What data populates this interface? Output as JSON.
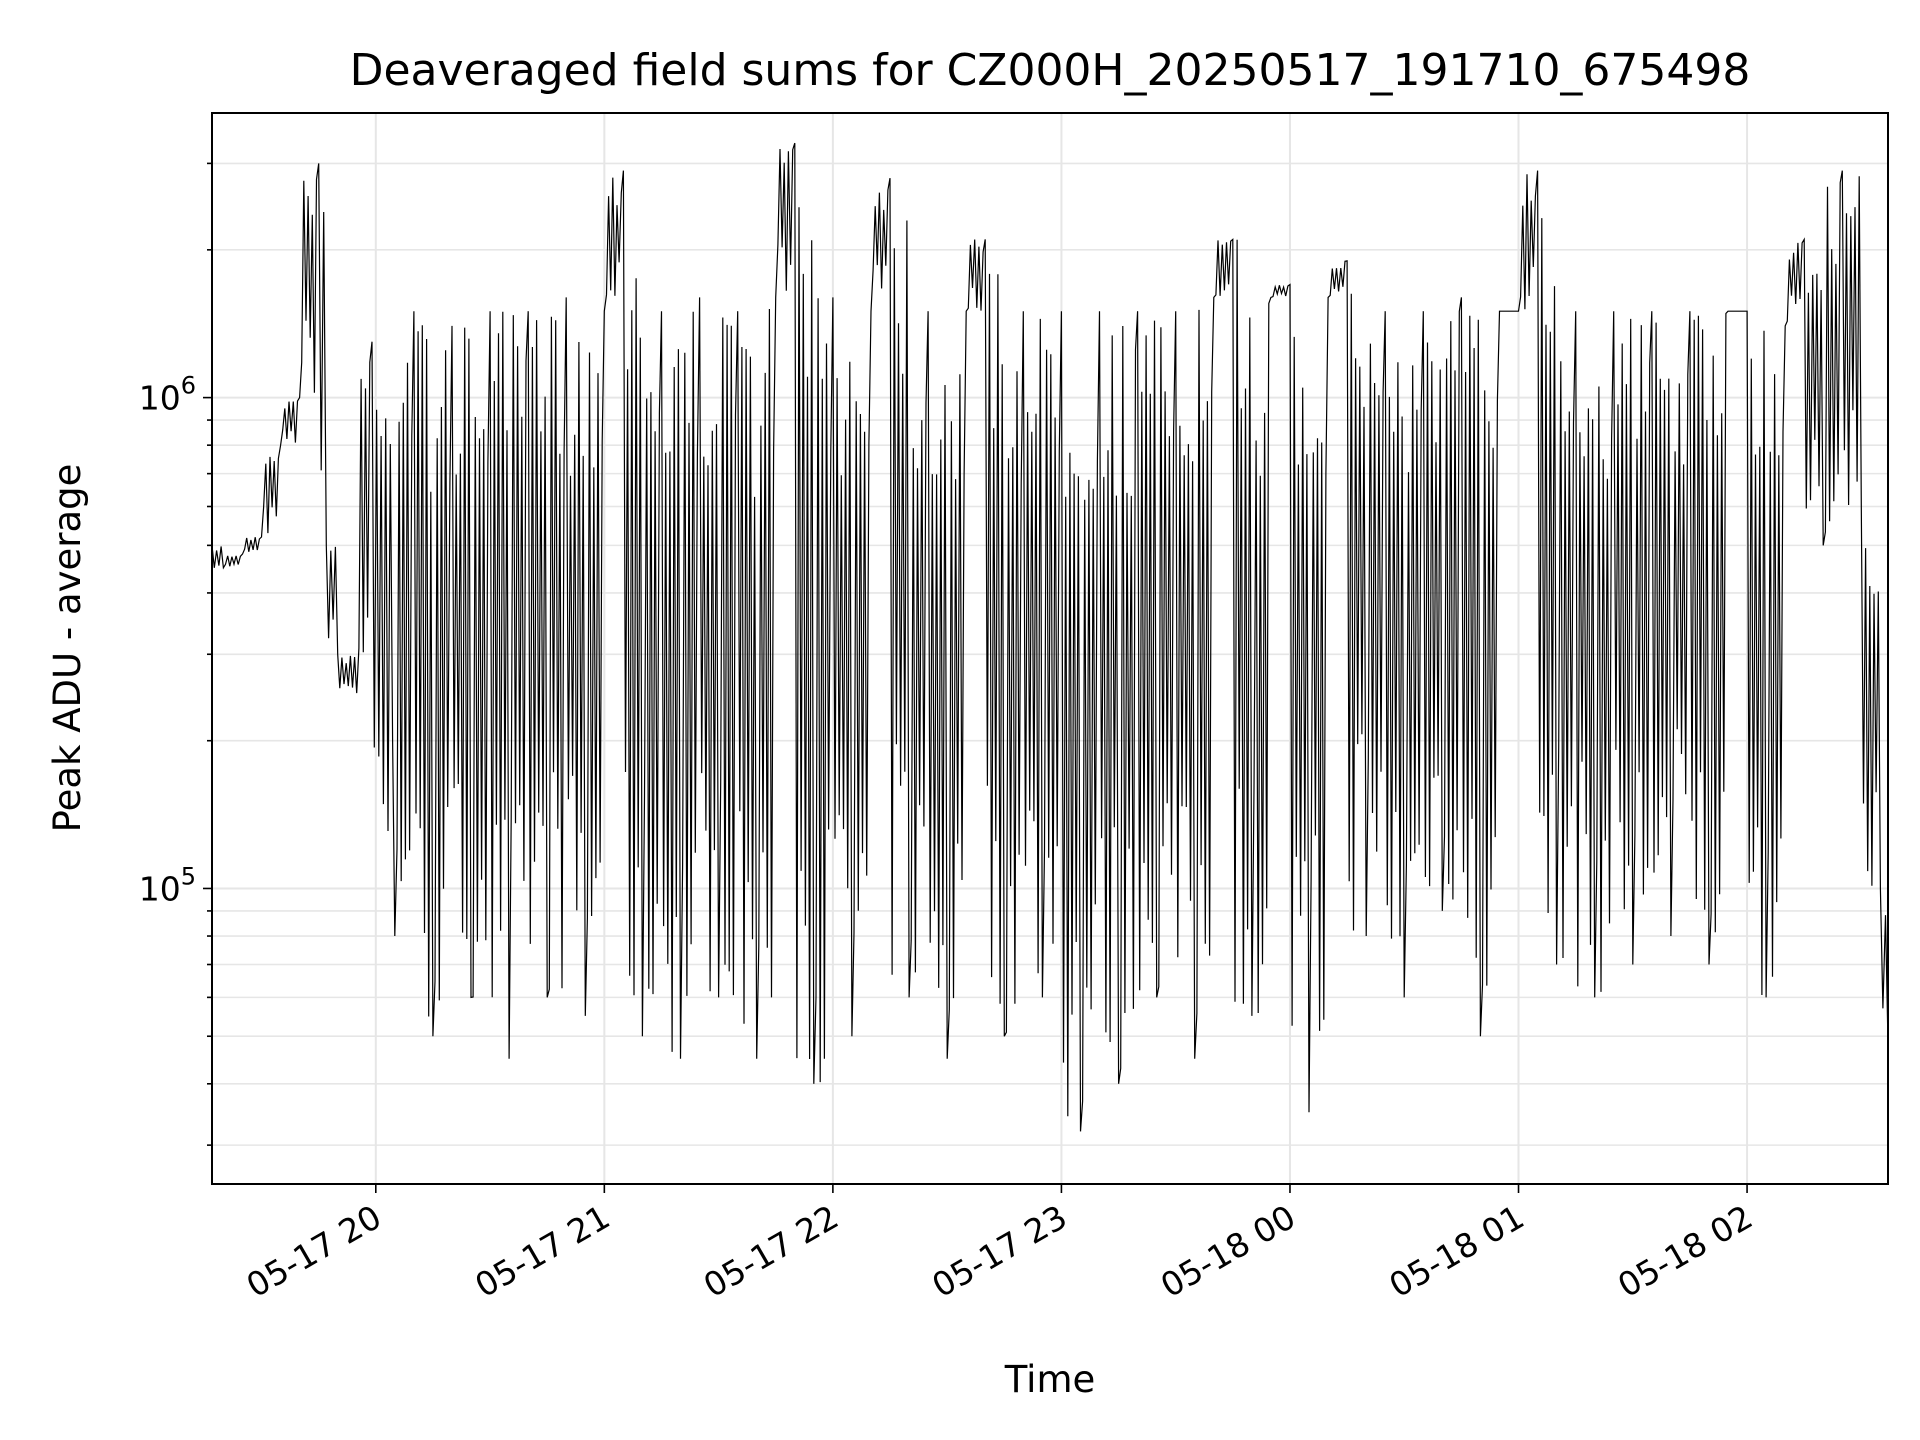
{
  "chart_data": {
    "type": "line",
    "title": "Deaveraged field sums for CZ000H_20250517_191710_675498",
    "xlabel": "Time",
    "ylabel": "Peak ADU - average",
    "yscale": "log",
    "xlim": [
      "2025-05-17 19:17",
      "2025-05-18 02:37"
    ],
    "ylim": [
      25000,
      3800000
    ],
    "grid": true,
    "line_color": "#000000",
    "x_ticks": [
      {
        "value": "2025-05-17 20:00",
        "label": "05-17 20"
      },
      {
        "value": "2025-05-17 21:00",
        "label": "05-17 21"
      },
      {
        "value": "2025-05-17 22:00",
        "label": "05-17 22"
      },
      {
        "value": "2025-05-17 23:00",
        "label": "05-17 23"
      },
      {
        "value": "2025-05-18 00:00",
        "label": "05-18 00"
      },
      {
        "value": "2025-05-18 01:00",
        "label": "05-18 01"
      },
      {
        "value": "2025-05-18 02:00",
        "label": "05-18 02"
      }
    ],
    "y_ticks": [
      {
        "value": 100000,
        "base": "10",
        "exp": "5"
      },
      {
        "value": 1000000,
        "base": "10",
        "exp": "6"
      }
    ],
    "series": [
      {
        "x": [
          "2025-05-17 19:17",
          "2025-05-17 19:20",
          "2025-05-17 19:25",
          "2025-05-17 19:30",
          "2025-05-17 19:35",
          "2025-05-17 19:40",
          "2025-05-17 19:45",
          "2025-05-17 19:47",
          "2025-05-17 19:50",
          "2025-05-17 19:55",
          "2025-05-17 19:59",
          "2025-05-17 20:05",
          "2025-05-17 20:10",
          "2025-05-17 20:15",
          "2025-05-17 20:20",
          "2025-05-17 20:25",
          "2025-05-17 20:30",
          "2025-05-17 20:35",
          "2025-05-17 20:40",
          "2025-05-17 20:45",
          "2025-05-17 20:50",
          "2025-05-17 20:55",
          "2025-05-17 21:00",
          "2025-05-17 21:05",
          "2025-05-17 21:10",
          "2025-05-17 21:15",
          "2025-05-17 21:20",
          "2025-05-17 21:25",
          "2025-05-17 21:30",
          "2025-05-17 21:35",
          "2025-05-17 21:40",
          "2025-05-17 21:45",
          "2025-05-17 21:50",
          "2025-05-17 21:55",
          "2025-05-17 22:00",
          "2025-05-17 22:05",
          "2025-05-17 22:10",
          "2025-05-17 22:15",
          "2025-05-17 22:20",
          "2025-05-17 22:25",
          "2025-05-17 22:30",
          "2025-05-17 22:35",
          "2025-05-17 22:40",
          "2025-05-17 22:45",
          "2025-05-17 22:50",
          "2025-05-17 22:55",
          "2025-05-17 23:00",
          "2025-05-17 23:05",
          "2025-05-17 23:10",
          "2025-05-17 23:15",
          "2025-05-17 23:20",
          "2025-05-17 23:25",
          "2025-05-17 23:30",
          "2025-05-17 23:35",
          "2025-05-17 23:40",
          "2025-05-17 23:45",
          "2025-05-17 23:50",
          "2025-05-17 23:55",
          "2025-05-18 00:00",
          "2025-05-18 00:05",
          "2025-05-18 00:10",
          "2025-05-18 00:15",
          "2025-05-18 00:20",
          "2025-05-18 00:25",
          "2025-05-18 00:30",
          "2025-05-18 00:35",
          "2025-05-18 00:40",
          "2025-05-18 00:45",
          "2025-05-18 00:50",
          "2025-05-18 00:55",
          "2025-05-18 01:00",
          "2025-05-18 01:05",
          "2025-05-18 01:10",
          "2025-05-18 01:15",
          "2025-05-18 01:20",
          "2025-05-18 01:25",
          "2025-05-18 01:30",
          "2025-05-18 01:35",
          "2025-05-18 01:40",
          "2025-05-18 01:45",
          "2025-05-18 01:50",
          "2025-05-18 01:55",
          "2025-05-18 02:00",
          "2025-05-18 02:05",
          "2025-05-18 02:10",
          "2025-05-18 02:15",
          "2025-05-18 02:20",
          "2025-05-18 02:25",
          "2025-05-18 02:30",
          "2025-05-18 02:35",
          "2025-05-18 02:37"
        ],
        "y": [
          500000,
          450000,
          480000,
          520000,
          800000,
          1000000,
          3000000,
          500000,
          300000,
          250000,
          1300000,
          80000,
          1500000,
          50000,
          1400000,
          60000,
          1500000,
          45000,
          1500000,
          60000,
          1600000,
          55000,
          1500000,
          2900000,
          50000,
          1500000,
          45000,
          1600000,
          60000,
          1500000,
          45000,
          1600000,
          3300000,
          40000,
          1600000,
          50000,
          1500000,
          2800000,
          60000,
          1500000,
          45000,
          1500000,
          2100000,
          50000,
          1500000,
          60000,
          1500000,
          32000,
          1500000,
          40000,
          1500000,
          60000,
          1500000,
          45000,
          1600000,
          2100000,
          55000,
          1600000,
          1700000,
          35000,
          1600000,
          1900000,
          80000,
          1500000,
          60000,
          1500000,
          90000,
          1600000,
          50000,
          1500000,
          1500000,
          2900000,
          70000,
          1500000,
          60000,
          1500000,
          70000,
          1500000,
          80000,
          1500000,
          70000,
          1500000,
          1500000,
          60000,
          1400000,
          2100000,
          500000,
          2900000,
          600000,
          100000,
          48000
        ]
      }
    ]
  }
}
